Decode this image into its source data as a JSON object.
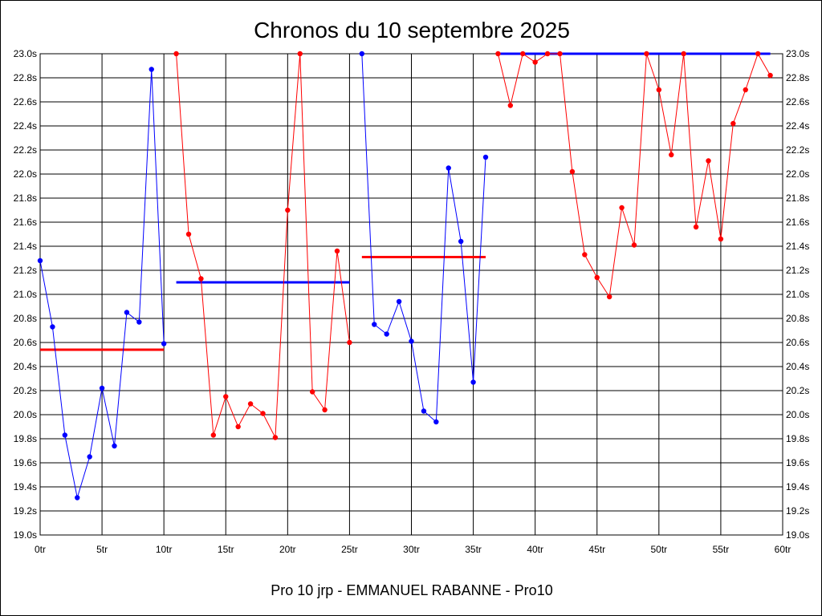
{
  "chart_data": {
    "type": "line",
    "title": "Chronos du 10 septembre 2025",
    "subtitle": "Pro 10 jrp - EMMANUEL RABANNE - Pro10",
    "x_unit": "tr",
    "y_unit": "s",
    "xlim": [
      0,
      60
    ],
    "ylim": [
      19.0,
      23.0
    ],
    "x_ticks": [
      0,
      5,
      10,
      15,
      20,
      25,
      30,
      35,
      40,
      45,
      50,
      55,
      60
    ],
    "y_ticks": [
      19.0,
      19.2,
      19.4,
      19.6,
      19.8,
      20.0,
      20.2,
      20.4,
      20.6,
      20.8,
      21.0,
      21.2,
      21.4,
      21.6,
      21.8,
      22.0,
      22.2,
      22.4,
      22.6,
      22.8,
      23.0
    ],
    "grid": true,
    "series": [
      {
        "color": "#0000ff",
        "x": [
          0,
          1,
          2,
          3,
          4,
          5,
          6,
          7,
          8,
          9,
          10
        ],
        "values": [
          21.28,
          20.73,
          19.83,
          19.31,
          19.65,
          20.22,
          19.74,
          20.85,
          20.77,
          22.87,
          20.59
        ]
      },
      {
        "color": "#ff0000",
        "x": [
          11,
          12,
          13,
          14,
          15,
          16,
          17,
          18,
          19,
          20,
          21,
          22,
          23,
          24,
          25
        ],
        "values": [
          23.0,
          21.5,
          21.13,
          19.83,
          20.15,
          19.9,
          20.09,
          20.01,
          19.81,
          21.7,
          23.0,
          20.19,
          20.04,
          21.36,
          20.6
        ]
      },
      {
        "color": "#0000ff",
        "x": [
          26,
          27,
          28,
          29,
          30,
          31,
          32,
          33,
          34,
          35,
          36
        ],
        "values": [
          23.0,
          20.75,
          20.67,
          20.94,
          20.61,
          20.03,
          19.94,
          22.05,
          21.44,
          20.27,
          22.14
        ]
      },
      {
        "color": "#ff0000",
        "x": [
          37,
          38,
          39,
          40,
          41,
          42,
          43,
          44,
          45,
          46,
          47,
          48,
          49,
          50,
          51,
          52,
          53,
          54,
          55,
          56,
          57,
          58,
          59
        ],
        "values": [
          23.0,
          22.57,
          23.0,
          22.93,
          23.0,
          23.0,
          22.02,
          21.33,
          21.14,
          20.98,
          21.72,
          21.41,
          23.0,
          22.7,
          22.16,
          23.0,
          21.56,
          22.11,
          21.46,
          22.42,
          22.7,
          23.0,
          22.82
        ]
      }
    ],
    "averages": [
      {
        "color": "#ff0000",
        "x_start": 0,
        "x_end": 10,
        "value": 20.54
      },
      {
        "color": "#0000ff",
        "x_start": 11,
        "x_end": 25,
        "value": 21.1
      },
      {
        "color": "#ff0000",
        "x_start": 26,
        "x_end": 36,
        "value": 21.31
      },
      {
        "color": "#0000ff",
        "x_start": 37,
        "x_end": 59,
        "value": 23.0
      }
    ]
  }
}
